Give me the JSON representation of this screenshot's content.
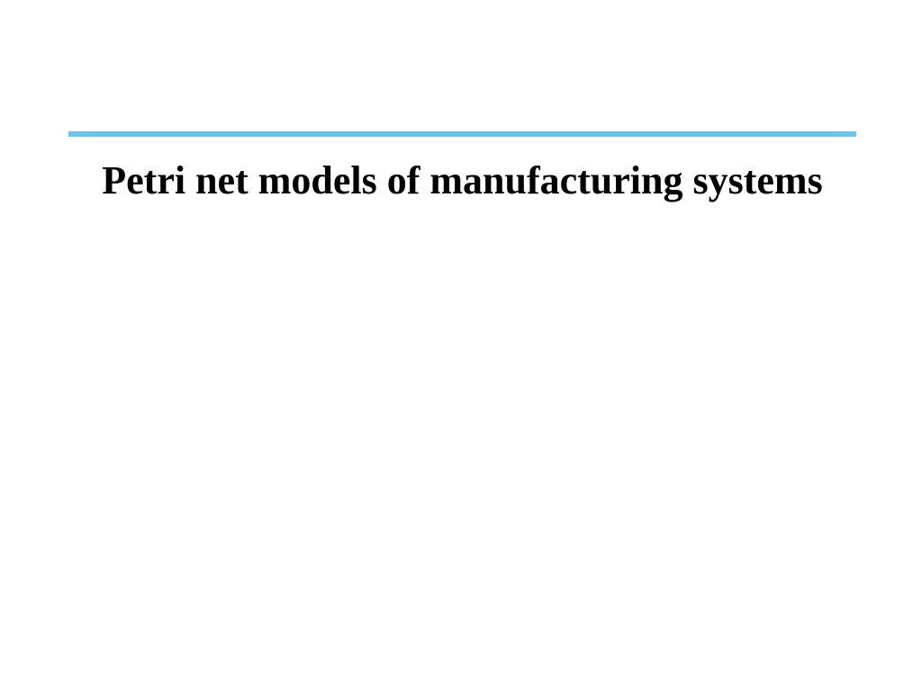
{
  "slide": {
    "title": "Petri net models of manufacturing systems",
    "divider_color": "#6cc5e9",
    "title_color": "#000000",
    "title_fontsize": 44,
    "background_color": "#ffffff",
    "divider_height": 6
  }
}
